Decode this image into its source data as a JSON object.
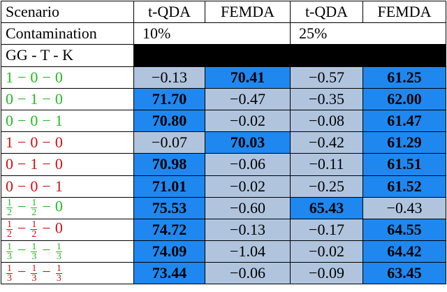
{
  "header": {
    "scenario": "Scenario",
    "col1": "t-QDA",
    "col2": "FEMDA",
    "col3": "t-QDA",
    "col4": "FEMDA"
  },
  "contamination": {
    "label": "Contamination",
    "left": "10%",
    "right": "25%"
  },
  "scheme_label": "GG - T - K",
  "rows": [
    {
      "color": "green",
      "parts": [
        {
          "t": "1"
        },
        {
          "t": "0"
        },
        {
          "t": "0"
        }
      ],
      "v": [
        "−0.13",
        "70.41",
        "−0.57",
        "61.25"
      ],
      "style": [
        "light",
        "dark",
        "light",
        "dark"
      ]
    },
    {
      "color": "green",
      "parts": [
        {
          "t": "0"
        },
        {
          "t": "1"
        },
        {
          "t": "0"
        }
      ],
      "v": [
        "71.70",
        "−0.47",
        "−0.35",
        "62.00"
      ],
      "style": [
        "dark",
        "light",
        "light",
        "dark"
      ]
    },
    {
      "color": "green",
      "parts": [
        {
          "t": "0"
        },
        {
          "t": "0"
        },
        {
          "t": "1"
        }
      ],
      "v": [
        "70.80",
        "−0.02",
        "−0.08",
        "61.47"
      ],
      "style": [
        "dark",
        "light",
        "light",
        "dark"
      ]
    },
    {
      "color": "red",
      "parts": [
        {
          "t": "1"
        },
        {
          "t": "0"
        },
        {
          "t": "0"
        }
      ],
      "v": [
        "−0.07",
        "70.03",
        "−0.42",
        "61.29"
      ],
      "style": [
        "light",
        "dark",
        "light",
        "dark"
      ]
    },
    {
      "color": "red",
      "parts": [
        {
          "t": "0"
        },
        {
          "t": "1"
        },
        {
          "t": "0"
        }
      ],
      "v": [
        "70.98",
        "−0.06",
        "−0.11",
        "61.51"
      ],
      "style": [
        "dark",
        "light",
        "light",
        "dark"
      ]
    },
    {
      "color": "red",
      "parts": [
        {
          "t": "0"
        },
        {
          "t": "0"
        },
        {
          "t": "1"
        }
      ],
      "v": [
        "71.01",
        "−0.02",
        "−0.25",
        "61.52"
      ],
      "style": [
        "dark",
        "light",
        "light",
        "dark"
      ]
    },
    {
      "color": "green",
      "parts": [
        {
          "n": "1",
          "d": "2"
        },
        {
          "n": "1",
          "d": "2"
        },
        {
          "t": "0"
        }
      ],
      "v": [
        "75.53",
        "−0.60",
        "65.43",
        "−0.43"
      ],
      "style": [
        "dark",
        "light",
        "dark",
        "light"
      ]
    },
    {
      "color": "red",
      "parts": [
        {
          "n": "1",
          "d": "2"
        },
        {
          "n": "1",
          "d": "2"
        },
        {
          "t": "0"
        }
      ],
      "v": [
        "74.72",
        "−0.13",
        "−0.17",
        "64.55"
      ],
      "style": [
        "dark",
        "light",
        "light",
        "dark"
      ]
    },
    {
      "color": "green",
      "parts": [
        {
          "n": "1",
          "d": "3"
        },
        {
          "n": "1",
          "d": "3"
        },
        {
          "n": "1",
          "d": "3"
        }
      ],
      "v": [
        "74.09",
        "−1.04",
        "−0.02",
        "64.42"
      ],
      "style": [
        "dark",
        "light",
        "light",
        "dark"
      ]
    },
    {
      "color": "red",
      "parts": [
        {
          "n": "1",
          "d": "3"
        },
        {
          "n": "1",
          "d": "3"
        },
        {
          "n": "1",
          "d": "3"
        }
      ],
      "v": [
        "73.44",
        "−0.06",
        "−0.09",
        "63.45"
      ],
      "style": [
        "dark",
        "light",
        "light",
        "dark"
      ]
    }
  ],
  "minus_sign": "−"
}
